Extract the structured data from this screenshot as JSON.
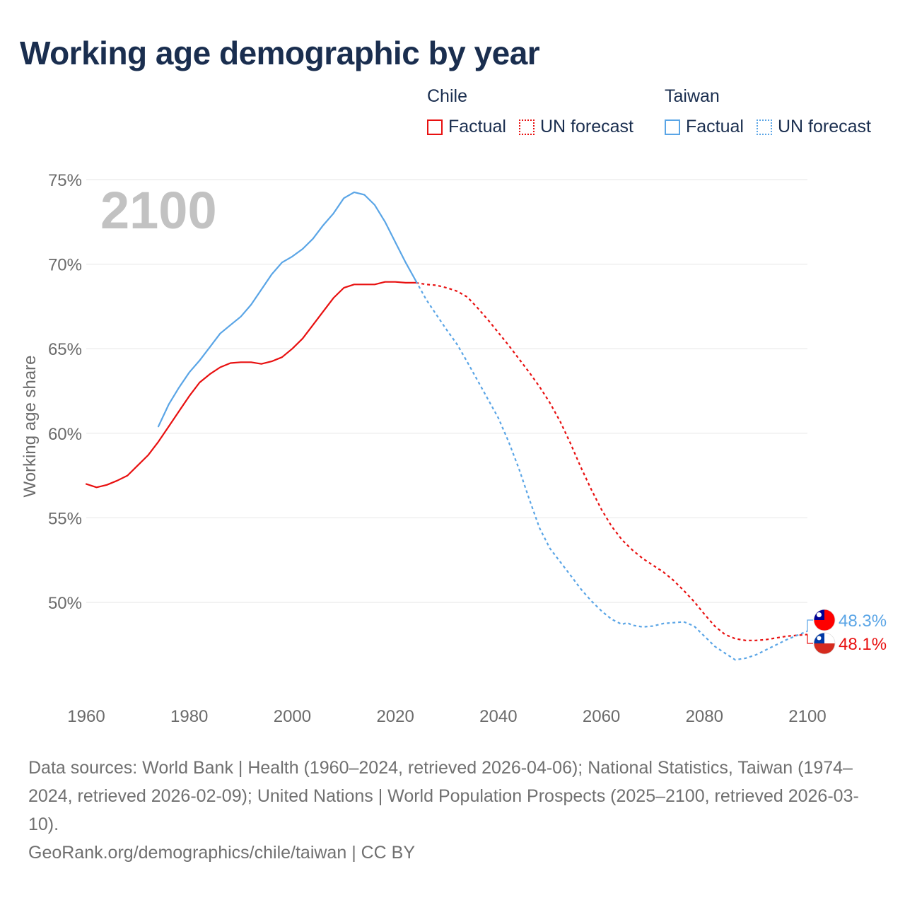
{
  "title": "Working age demographic by year",
  "legend": {
    "chile": {
      "title": "Chile",
      "factual": "Factual",
      "forecast": "UN forecast"
    },
    "taiwan": {
      "title": "Taiwan",
      "factual": "Factual",
      "forecast": "UN forecast"
    }
  },
  "colors": {
    "chile": "#e81010",
    "taiwan": "#5aa5e6",
    "text": "#1a2e4f",
    "grid": "#e6e6e6",
    "year": "#c2c2c2"
  },
  "chart_data": {
    "type": "line",
    "title": "Working age demographic by year",
    "xlabel": "",
    "ylabel": "Working age share",
    "xlim": [
      1960,
      2100
    ],
    "ylim": [
      45,
      75
    ],
    "x_ticks": [
      1960,
      1980,
      2000,
      2020,
      2040,
      2060,
      2080,
      2100
    ],
    "y_ticks": [
      50,
      55,
      60,
      65,
      70,
      75
    ],
    "y_tick_labels": [
      "50%",
      "55%",
      "60%",
      "65%",
      "70%",
      "75%"
    ],
    "year_watermark": "2100",
    "series": [
      {
        "name": "Chile",
        "kind": "factual",
        "points": [
          [
            1960,
            57.0
          ],
          [
            1962,
            56.8
          ],
          [
            1964,
            56.95
          ],
          [
            1966,
            57.2
          ],
          [
            1968,
            57.5
          ],
          [
            1970,
            58.1
          ],
          [
            1972,
            58.7
          ],
          [
            1974,
            59.5
          ],
          [
            1976,
            60.4
          ],
          [
            1978,
            61.3
          ],
          [
            1980,
            62.2
          ],
          [
            1982,
            63.0
          ],
          [
            1984,
            63.5
          ],
          [
            1986,
            63.9
          ],
          [
            1988,
            64.15
          ],
          [
            1990,
            64.2
          ],
          [
            1992,
            64.2
          ],
          [
            1994,
            64.1
          ],
          [
            1996,
            64.25
          ],
          [
            1998,
            64.5
          ],
          [
            2000,
            65.0
          ],
          [
            2002,
            65.6
          ],
          [
            2004,
            66.4
          ],
          [
            2006,
            67.2
          ],
          [
            2008,
            68.0
          ],
          [
            2010,
            68.6
          ],
          [
            2012,
            68.8
          ],
          [
            2014,
            68.8
          ],
          [
            2016,
            68.8
          ],
          [
            2018,
            68.95
          ],
          [
            2020,
            68.95
          ],
          [
            2022,
            68.9
          ],
          [
            2024,
            68.9
          ]
        ]
      },
      {
        "name": "Chile",
        "kind": "forecast",
        "points": [
          [
            2024,
            68.9
          ],
          [
            2026,
            68.8
          ],
          [
            2028,
            68.75
          ],
          [
            2030,
            68.6
          ],
          [
            2032,
            68.4
          ],
          [
            2034,
            68.05
          ],
          [
            2036,
            67.4
          ],
          [
            2038,
            66.7
          ],
          [
            2040,
            65.95
          ],
          [
            2042,
            65.2
          ],
          [
            2044,
            64.4
          ],
          [
            2046,
            63.6
          ],
          [
            2048,
            62.75
          ],
          [
            2050,
            61.8
          ],
          [
            2052,
            60.7
          ],
          [
            2054,
            59.4
          ],
          [
            2056,
            58.0
          ],
          [
            2058,
            56.7
          ],
          [
            2060,
            55.5
          ],
          [
            2062,
            54.5
          ],
          [
            2064,
            53.7
          ],
          [
            2066,
            53.1
          ],
          [
            2068,
            52.6
          ],
          [
            2070,
            52.2
          ],
          [
            2072,
            51.8
          ],
          [
            2074,
            51.3
          ],
          [
            2076,
            50.7
          ],
          [
            2078,
            50.05
          ],
          [
            2080,
            49.3
          ],
          [
            2082,
            48.6
          ],
          [
            2084,
            48.1
          ],
          [
            2086,
            47.85
          ],
          [
            2088,
            47.75
          ],
          [
            2090,
            47.75
          ],
          [
            2092,
            47.8
          ],
          [
            2094,
            47.9
          ],
          [
            2096,
            48.0
          ],
          [
            2098,
            48.05
          ],
          [
            2100,
            48.1
          ]
        ]
      },
      {
        "name": "Taiwan",
        "kind": "factual",
        "points": [
          [
            1974,
            60.4
          ],
          [
            1976,
            61.7
          ],
          [
            1978,
            62.7
          ],
          [
            1980,
            63.6
          ],
          [
            1982,
            64.3
          ],
          [
            1984,
            65.1
          ],
          [
            1986,
            65.9
          ],
          [
            1988,
            66.4
          ],
          [
            1990,
            66.9
          ],
          [
            1992,
            67.6
          ],
          [
            1994,
            68.5
          ],
          [
            1996,
            69.4
          ],
          [
            1998,
            70.1
          ],
          [
            2000,
            70.45
          ],
          [
            2002,
            70.9
          ],
          [
            2004,
            71.5
          ],
          [
            2006,
            72.3
          ],
          [
            2008,
            73.0
          ],
          [
            2010,
            73.9
          ],
          [
            2012,
            74.25
          ],
          [
            2014,
            74.1
          ],
          [
            2016,
            73.5
          ],
          [
            2018,
            72.5
          ],
          [
            2020,
            71.3
          ],
          [
            2022,
            70.1
          ],
          [
            2024,
            69.0
          ]
        ]
      },
      {
        "name": "Taiwan",
        "kind": "forecast",
        "points": [
          [
            2024,
            69.0
          ],
          [
            2026,
            67.9
          ],
          [
            2028,
            67.0
          ],
          [
            2030,
            66.1
          ],
          [
            2032,
            65.25
          ],
          [
            2034,
            64.2
          ],
          [
            2036,
            63.1
          ],
          [
            2038,
            62.0
          ],
          [
            2040,
            60.9
          ],
          [
            2042,
            59.5
          ],
          [
            2044,
            57.9
          ],
          [
            2046,
            56.1
          ],
          [
            2048,
            54.4
          ],
          [
            2050,
            53.2
          ],
          [
            2052,
            52.4
          ],
          [
            2054,
            51.6
          ],
          [
            2056,
            50.8
          ],
          [
            2058,
            50.1
          ],
          [
            2060,
            49.5
          ],
          [
            2062,
            49.0
          ],
          [
            2064,
            48.7
          ],
          [
            2065,
            48.8
          ],
          [
            2066,
            48.65
          ],
          [
            2068,
            48.55
          ],
          [
            2070,
            48.6
          ],
          [
            2072,
            48.75
          ],
          [
            2074,
            48.8
          ],
          [
            2076,
            48.85
          ],
          [
            2078,
            48.6
          ],
          [
            2080,
            48.0
          ],
          [
            2082,
            47.4
          ],
          [
            2084,
            47.0
          ],
          [
            2086,
            46.6
          ],
          [
            2088,
            46.7
          ],
          [
            2090,
            46.9
          ],
          [
            2092,
            47.2
          ],
          [
            2094,
            47.5
          ],
          [
            2096,
            47.8
          ],
          [
            2098,
            48.05
          ],
          [
            2100,
            48.3
          ]
        ]
      }
    ],
    "end_labels": [
      {
        "name": "Taiwan",
        "value": 48.3,
        "label": "48.3%"
      },
      {
        "name": "Chile",
        "value": 48.1,
        "label": "48.1%"
      }
    ]
  },
  "footer": {
    "sources": "Data sources: World Bank | Health (1960–2024, retrieved 2026-04-06); National Statistics, Taiwan (1974–2024, retrieved 2026-02-09); United Nations | World Population Prospects (2025–2100, retrieved 2026-03-10).",
    "credit": "GeoRank.org/demographics/chile/taiwan | CC BY"
  }
}
